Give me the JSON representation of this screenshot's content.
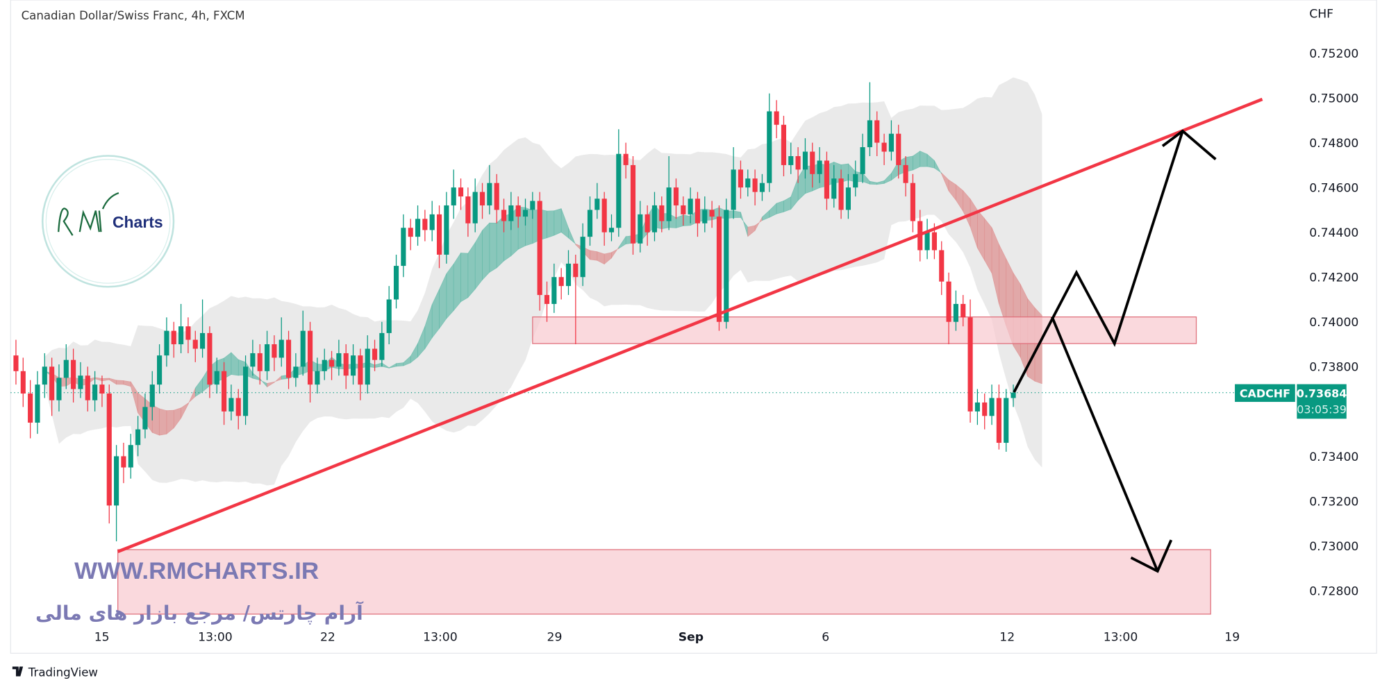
{
  "header": {
    "title": "Canadian Dollar/Swiss Franc, 4h, FXCM"
  },
  "footer": {
    "brand": "TradingView"
  },
  "watermark": {
    "url": "WWW.RMCHARTS.IR",
    "persian": "آرام چارتس/ مرجع بازار های مالی",
    "logo_text": "RM Charts",
    "color": "#7b79b3"
  },
  "price_tag": {
    "symbol": "CADCHF",
    "price": "0.73684",
    "countdown": "03:05:39",
    "color": "#089981"
  },
  "colors": {
    "up": "#089981",
    "down": "#f23645",
    "trendline": "#f23645",
    "zone_fill": "#f8c9cf",
    "arrows": "#000000"
  },
  "chart_data": {
    "type": "candlestick",
    "symbol": "CADCHF",
    "interval": "4h",
    "y_unit": "CHF",
    "ylim": [
      0.7272,
      0.7535
    ],
    "y_ticks": [
      "0.75200",
      "0.75000",
      "0.74800",
      "0.74600",
      "0.74400",
      "0.74200",
      "0.74000",
      "0.73800",
      "0.73400",
      "0.73200",
      "0.73000",
      "0.72800"
    ],
    "x_ticks": [
      "15",
      "13:00",
      "22",
      "13:00",
      "29",
      "Sep",
      "6",
      "12",
      "13:00",
      "19"
    ],
    "grid": false,
    "last_price": 0.73684,
    "candles_ohlc": [
      [
        0.7385,
        0.7392,
        0.7372,
        0.7378
      ],
      [
        0.7378,
        0.7384,
        0.7362,
        0.7368
      ],
      [
        0.7368,
        0.7374,
        0.7348,
        0.7355
      ],
      [
        0.7355,
        0.7378,
        0.735,
        0.7372
      ],
      [
        0.7372,
        0.7386,
        0.7366,
        0.738
      ],
      [
        0.738,
        0.7384,
        0.7358,
        0.7365
      ],
      [
        0.7365,
        0.7381,
        0.736,
        0.7375
      ],
      [
        0.7375,
        0.739,
        0.737,
        0.7383
      ],
      [
        0.7383,
        0.7388,
        0.7364,
        0.737
      ],
      [
        0.737,
        0.7382,
        0.7366,
        0.7376
      ],
      [
        0.7376,
        0.738,
        0.736,
        0.7365
      ],
      [
        0.7365,
        0.7378,
        0.736,
        0.7372
      ],
      [
        0.7372,
        0.7376,
        0.7362,
        0.7368
      ],
      [
        0.7368,
        0.7372,
        0.731,
        0.7318
      ],
      [
        0.7318,
        0.7345,
        0.7302,
        0.734
      ],
      [
        0.734,
        0.7346,
        0.7328,
        0.7335
      ],
      [
        0.7335,
        0.735,
        0.733,
        0.7345
      ],
      [
        0.7345,
        0.7358,
        0.734,
        0.7352
      ],
      [
        0.7352,
        0.7368,
        0.7348,
        0.7362
      ],
      [
        0.7362,
        0.7378,
        0.7356,
        0.7372
      ],
      [
        0.7372,
        0.739,
        0.7368,
        0.7385
      ],
      [
        0.7385,
        0.7402,
        0.738,
        0.7396
      ],
      [
        0.7396,
        0.74,
        0.7384,
        0.739
      ],
      [
        0.739,
        0.7408,
        0.7386,
        0.7398
      ],
      [
        0.7398,
        0.7402,
        0.7386,
        0.7392
      ],
      [
        0.7392,
        0.7396,
        0.7382,
        0.7388
      ],
      [
        0.7388,
        0.741,
        0.7384,
        0.7395
      ],
      [
        0.7395,
        0.7398,
        0.7366,
        0.7372
      ],
      [
        0.7372,
        0.7384,
        0.7368,
        0.7378
      ],
      [
        0.7378,
        0.7382,
        0.7354,
        0.736
      ],
      [
        0.736,
        0.7372,
        0.7356,
        0.7366
      ],
      [
        0.7366,
        0.737,
        0.7352,
        0.7358
      ],
      [
        0.7358,
        0.7385,
        0.7354,
        0.738
      ],
      [
        0.738,
        0.7392,
        0.7376,
        0.7386
      ],
      [
        0.7386,
        0.739,
        0.7372,
        0.7378
      ],
      [
        0.7378,
        0.7396,
        0.7374,
        0.739
      ],
      [
        0.739,
        0.7394,
        0.7378,
        0.7384
      ],
      [
        0.7384,
        0.7402,
        0.738,
        0.7392
      ],
      [
        0.7392,
        0.7396,
        0.737,
        0.7375
      ],
      [
        0.7375,
        0.7386,
        0.7371,
        0.738
      ],
      [
        0.738,
        0.7405,
        0.7376,
        0.7396
      ],
      [
        0.7396,
        0.74,
        0.7364,
        0.7372
      ],
      [
        0.7372,
        0.7384,
        0.7368,
        0.7378
      ],
      [
        0.7378,
        0.7388,
        0.7374,
        0.7383
      ],
      [
        0.7383,
        0.7387,
        0.7374,
        0.738
      ],
      [
        0.738,
        0.7392,
        0.7376,
        0.7386
      ],
      [
        0.7386,
        0.739,
        0.737,
        0.7376
      ],
      [
        0.7376,
        0.739,
        0.7372,
        0.7385
      ],
      [
        0.7385,
        0.7388,
        0.7365,
        0.7372
      ],
      [
        0.7372,
        0.7394,
        0.7368,
        0.7388
      ],
      [
        0.7388,
        0.7392,
        0.7378,
        0.7383
      ],
      [
        0.7383,
        0.74,
        0.738,
        0.7395
      ],
      [
        0.7395,
        0.7416,
        0.739,
        0.741
      ],
      [
        0.741,
        0.743,
        0.7406,
        0.7425
      ],
      [
        0.7425,
        0.7448,
        0.742,
        0.7442
      ],
      [
        0.7442,
        0.7446,
        0.7432,
        0.7438
      ],
      [
        0.7438,
        0.7452,
        0.7434,
        0.7446
      ],
      [
        0.7446,
        0.745,
        0.7436,
        0.7441
      ],
      [
        0.7441,
        0.7454,
        0.7436,
        0.7448
      ],
      [
        0.7448,
        0.7452,
        0.7424,
        0.743
      ],
      [
        0.743,
        0.7458,
        0.7426,
        0.7452
      ],
      [
        0.7452,
        0.7468,
        0.7446,
        0.746
      ],
      [
        0.746,
        0.7464,
        0.745,
        0.7456
      ],
      [
        0.7456,
        0.746,
        0.7438,
        0.7444
      ],
      [
        0.7444,
        0.7464,
        0.744,
        0.7458
      ],
      [
        0.7458,
        0.7462,
        0.7446,
        0.7452
      ],
      [
        0.7452,
        0.747,
        0.7448,
        0.7462
      ],
      [
        0.7462,
        0.7466,
        0.7444,
        0.745
      ],
      [
        0.745,
        0.7455,
        0.744,
        0.7445
      ],
      [
        0.7445,
        0.7458,
        0.7441,
        0.7452
      ],
      [
        0.7452,
        0.7456,
        0.7442,
        0.7447
      ],
      [
        0.7447,
        0.7455,
        0.7443,
        0.745
      ],
      [
        0.745,
        0.7458,
        0.7446,
        0.7454
      ],
      [
        0.7454,
        0.7458,
        0.7405,
        0.7412
      ],
      [
        0.7412,
        0.7418,
        0.74,
        0.7408
      ],
      [
        0.7408,
        0.7426,
        0.7404,
        0.742
      ],
      [
        0.742,
        0.7424,
        0.741,
        0.7416
      ],
      [
        0.7416,
        0.7432,
        0.7412,
        0.7426
      ],
      [
        0.7426,
        0.743,
        0.739,
        0.742
      ],
      [
        0.742,
        0.7444,
        0.7416,
        0.7438
      ],
      [
        0.7438,
        0.7456,
        0.7434,
        0.745
      ],
      [
        0.745,
        0.7462,
        0.7446,
        0.7455
      ],
      [
        0.7455,
        0.7458,
        0.7434,
        0.744
      ],
      [
        0.744,
        0.7448,
        0.7436,
        0.7442
      ],
      [
        0.7442,
        0.7486,
        0.7438,
        0.7475
      ],
      [
        0.7475,
        0.748,
        0.7464,
        0.747
      ],
      [
        0.747,
        0.7474,
        0.743,
        0.7435
      ],
      [
        0.7435,
        0.7454,
        0.7431,
        0.7448
      ],
      [
        0.7448,
        0.7452,
        0.7434,
        0.744
      ],
      [
        0.744,
        0.7458,
        0.7436,
        0.7452
      ],
      [
        0.7452,
        0.7456,
        0.744,
        0.7445
      ],
      [
        0.7445,
        0.7474,
        0.7441,
        0.746
      ],
      [
        0.746,
        0.7464,
        0.7446,
        0.7452
      ],
      [
        0.7452,
        0.7456,
        0.7443,
        0.7448
      ],
      [
        0.7448,
        0.746,
        0.7444,
        0.7455
      ],
      [
        0.7455,
        0.7458,
        0.7438,
        0.7444
      ],
      [
        0.7444,
        0.7456,
        0.744,
        0.745
      ],
      [
        0.745,
        0.7454,
        0.7442,
        0.7447
      ],
      [
        0.7447,
        0.7452,
        0.7396,
        0.74
      ],
      [
        0.74,
        0.7455,
        0.7397,
        0.745
      ],
      [
        0.745,
        0.7478,
        0.7446,
        0.7468
      ],
      [
        0.7468,
        0.7472,
        0.7455,
        0.746
      ],
      [
        0.746,
        0.7468,
        0.7456,
        0.7464
      ],
      [
        0.7464,
        0.7468,
        0.7452,
        0.7458
      ],
      [
        0.7458,
        0.7466,
        0.7454,
        0.7462
      ],
      [
        0.7462,
        0.7502,
        0.7458,
        0.7494
      ],
      [
        0.7494,
        0.7499,
        0.7482,
        0.7488
      ],
      [
        0.7488,
        0.7492,
        0.7465,
        0.747
      ],
      [
        0.747,
        0.748,
        0.7466,
        0.7474
      ],
      [
        0.7474,
        0.7478,
        0.7462,
        0.7468
      ],
      [
        0.7468,
        0.7482,
        0.7464,
        0.7476
      ],
      [
        0.7476,
        0.748,
        0.746,
        0.7466
      ],
      [
        0.7466,
        0.7478,
        0.7462,
        0.7472
      ],
      [
        0.7472,
        0.7476,
        0.745,
        0.7455
      ],
      [
        0.7455,
        0.747,
        0.7451,
        0.7464
      ],
      [
        0.7464,
        0.7468,
        0.7446,
        0.745
      ],
      [
        0.745,
        0.7466,
        0.7446,
        0.746
      ],
      [
        0.746,
        0.7472,
        0.7456,
        0.7466
      ],
      [
        0.7466,
        0.7484,
        0.7462,
        0.7478
      ],
      [
        0.7478,
        0.7507,
        0.7474,
        0.749
      ],
      [
        0.749,
        0.7494,
        0.7474,
        0.748
      ],
      [
        0.748,
        0.7484,
        0.747,
        0.7476
      ],
      [
        0.7476,
        0.749,
        0.7472,
        0.7484
      ],
      [
        0.7484,
        0.7488,
        0.7464,
        0.747
      ],
      [
        0.747,
        0.7474,
        0.7456,
        0.7462
      ],
      [
        0.7462,
        0.7466,
        0.744,
        0.7445
      ],
      [
        0.7445,
        0.745,
        0.7427,
        0.7432
      ],
      [
        0.7432,
        0.7446,
        0.7428,
        0.744
      ],
      [
        0.744,
        0.7444,
        0.7428,
        0.7432
      ],
      [
        0.7432,
        0.7436,
        0.7412,
        0.7418
      ],
      [
        0.7418,
        0.7422,
        0.739,
        0.74
      ],
      [
        0.74,
        0.7414,
        0.7396,
        0.7408
      ],
      [
        0.7408,
        0.7412,
        0.7398,
        0.7402
      ],
      [
        0.7402,
        0.741,
        0.7355,
        0.736
      ],
      [
        0.736,
        0.737,
        0.7354,
        0.7364
      ],
      [
        0.7364,
        0.7368,
        0.7352,
        0.7358
      ],
      [
        0.7358,
        0.7372,
        0.7354,
        0.7366
      ],
      [
        0.7366,
        0.7372,
        0.7343,
        0.7346
      ],
      [
        0.7346,
        0.737,
        0.7342,
        0.7366
      ],
      [
        0.7366,
        0.7372,
        0.7362,
        0.73684
      ]
    ],
    "drawings": {
      "trendline": {
        "from": [
          14.2,
          0.72974
        ],
        "to": [
          173.7,
          0.74994
        ]
      },
      "zones": [
        {
          "from_bar": 72,
          "to_bar": 164.5,
          "top": 0.74022,
          "bottom": 0.73903
        },
        {
          "from_bar": 14.2,
          "to_bar": 166.5,
          "top": 0.72983,
          "bottom": 0.72695
        }
      ],
      "bullish_path": [
        [
          139.1,
          0.73686
        ],
        [
          147.8,
          0.7422
        ],
        [
          153.1,
          0.73903
        ],
        [
          162.6,
          0.74852
        ]
      ],
      "bullish_head": [
        [
          159.8,
          0.74785
        ],
        [
          162.6,
          0.74852
        ],
        [
          167.2,
          0.74726
        ]
      ],
      "bearish_path": [
        [
          144.4,
          0.74022
        ],
        [
          159.1,
          0.72887
        ]
      ],
      "bearish_head": [
        [
          155.4,
          0.72947
        ],
        [
          159.1,
          0.72887
        ],
        [
          161.0,
          0.73026
        ]
      ]
    }
  }
}
